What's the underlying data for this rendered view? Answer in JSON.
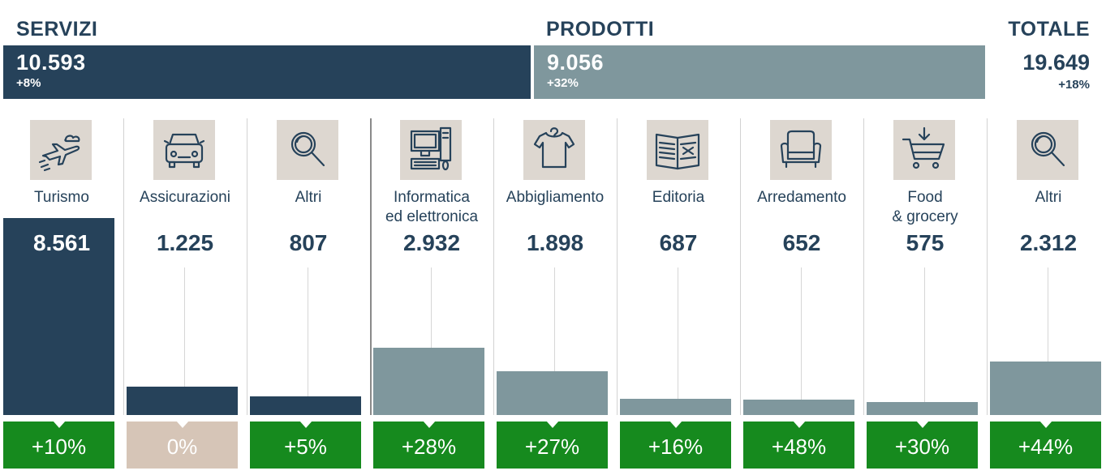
{
  "header": {
    "servizi_title": "SERVIZI",
    "prodotti_title": "PRODOTTI",
    "totale_title": "TOTALE",
    "servizi_value": "10.593",
    "servizi_pct": "+8%",
    "prodotti_value": "9.056",
    "prodotti_pct": "+32%",
    "totale_value": "19.649",
    "totale_pct": "+18%"
  },
  "colors": {
    "servizi": "#26425a",
    "prodotti": "#7f979d",
    "positive": "#168a1e",
    "neutral": "#d6c5b7",
    "icon_bg": "#ddd7d0"
  },
  "chart_data": {
    "type": "bar",
    "categories": [
      "Turismo",
      "Assicurazioni",
      "Altri",
      "Informatica\ned elettronica",
      "Abbigliamento",
      "Editoria",
      "Arredamento",
      "Food\n& grocery",
      "Altri"
    ],
    "values": [
      8561,
      1225,
      807,
      2932,
      1898,
      687,
      652,
      575,
      2312
    ],
    "value_labels": [
      "8.561",
      "1.225",
      "807",
      "2.932",
      "1.898",
      "687",
      "652",
      "575",
      "2.312"
    ],
    "growth_labels": [
      "+10%",
      "0%",
      "+5%",
      "+28%",
      "+27%",
      "+16%",
      "+48%",
      "+30%",
      "+44%"
    ],
    "groups": [
      "servizi",
      "servizi",
      "servizi",
      "prodotti",
      "prodotti",
      "prodotti",
      "prodotti",
      "prodotti",
      "prodotti"
    ],
    "icons": [
      "plane-icon",
      "car-icon",
      "magnifier-icon",
      "computer-icon",
      "tshirt-icon",
      "book-icon",
      "armchair-icon",
      "cart-icon",
      "magnifier-icon"
    ],
    "ylim": [
      0,
      8561
    ]
  }
}
